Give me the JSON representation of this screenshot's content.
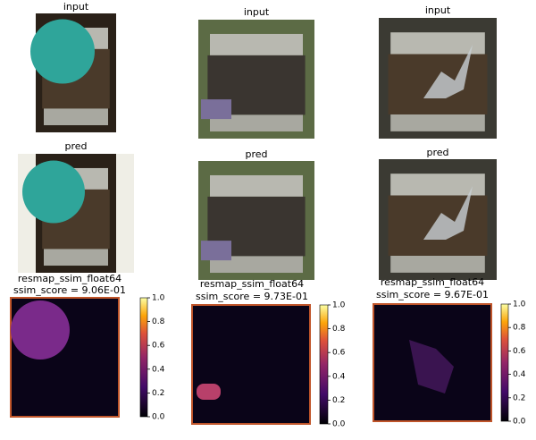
{
  "panels": [
    {
      "input_title": "input",
      "pred_title": "pred",
      "resmap_title": "resmap_ssim_float64",
      "score": "ssim_score = 9.06E-01"
    },
    {
      "input_title": "input",
      "pred_title": "pred",
      "resmap_title": "resmap_ssim_float64",
      "score": "ssim_score = 9.73E-01"
    },
    {
      "input_title": "input",
      "pred_title": "pred",
      "resmap_title": "resmap_ssim_float64",
      "score": "ssim_score = 9.67E-01"
    }
  ],
  "colorbar": {
    "lim": [
      0,
      1
    ],
    "ticks": [
      {
        "value": 0,
        "label": "0.0"
      },
      {
        "value": 0.2,
        "label": "0.2"
      },
      {
        "value": 0.4,
        "label": "0.4"
      },
      {
        "value": 0.6,
        "label": "0.6"
      },
      {
        "value": 0.8,
        "label": "0.8"
      },
      {
        "value": 1,
        "label": "1.0"
      }
    ]
  }
}
